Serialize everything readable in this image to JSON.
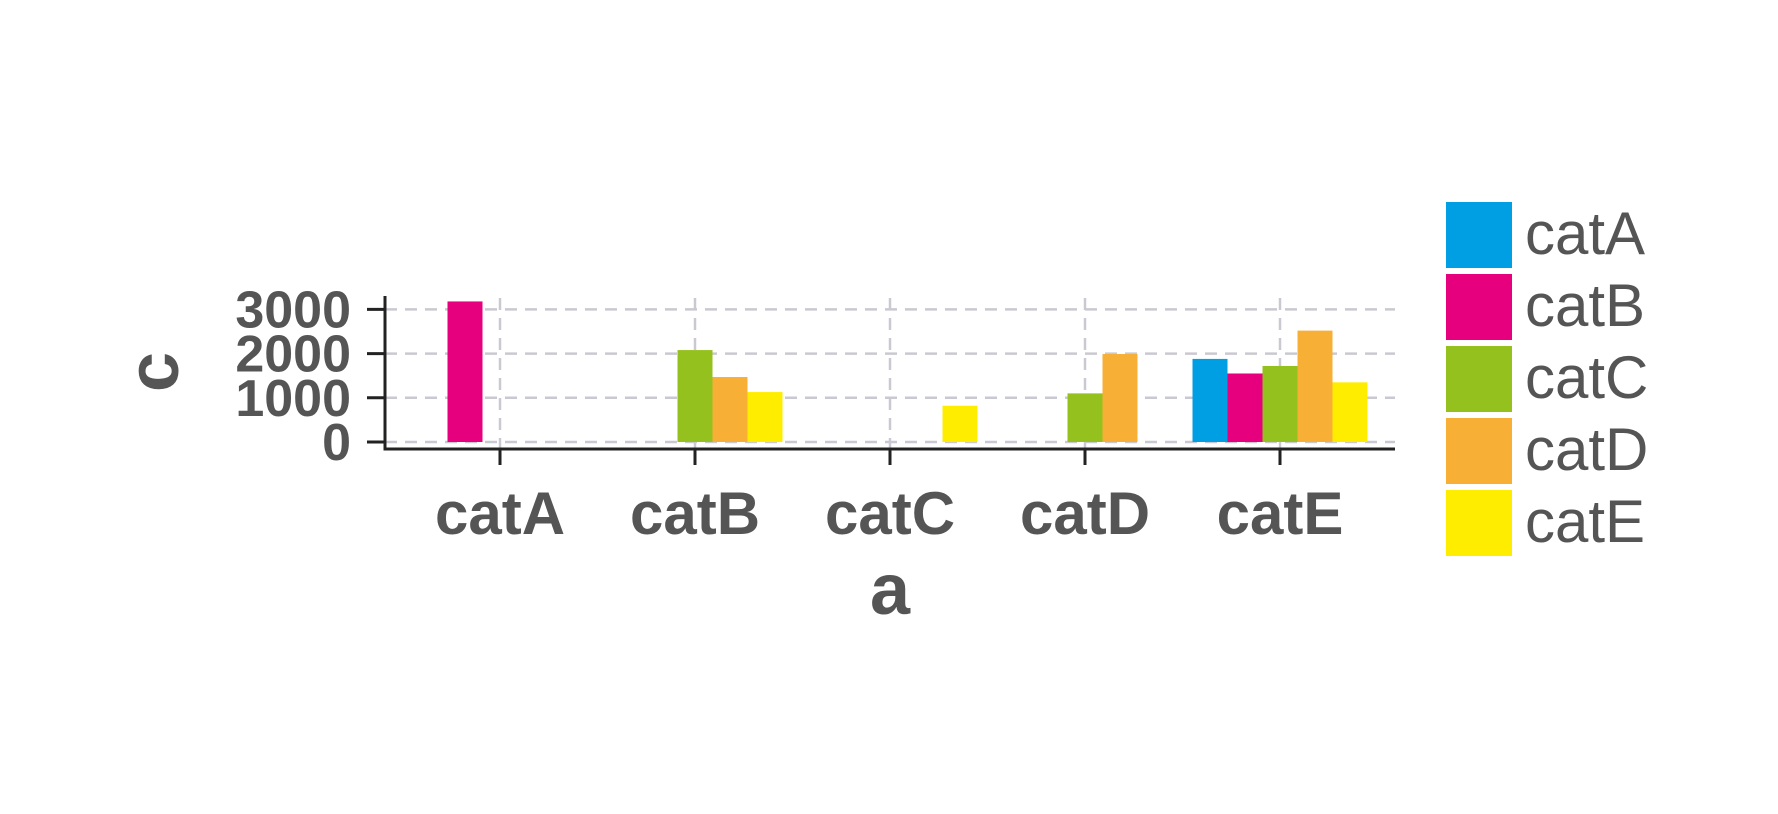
{
  "chart_data": {
    "type": "bar",
    "title": "",
    "xlabel": "a",
    "ylabel": "c",
    "categories": [
      "catA",
      "catB",
      "catC",
      "catD",
      "catE"
    ],
    "series": [
      {
        "name": "catA",
        "color": "#009FE3",
        "values": [
          null,
          null,
          null,
          null,
          1880
        ]
      },
      {
        "name": "catB",
        "color": "#E6007E",
        "values": [
          3180,
          null,
          null,
          null,
          1550
        ]
      },
      {
        "name": "catC",
        "color": "#95C11F",
        "values": [
          null,
          2080,
          null,
          1100,
          1720
        ]
      },
      {
        "name": "catD",
        "color": "#F7AF36",
        "values": [
          null,
          1470,
          null,
          1990,
          2520
        ]
      },
      {
        "name": "catE",
        "color": "#FFED00",
        "values": [
          null,
          1130,
          820,
          null,
          1350
        ]
      }
    ],
    "yticks": [
      0,
      1000,
      2000,
      3000
    ],
    "ylim": [
      0,
      3200
    ],
    "grid": true,
    "legend": {
      "position": "right",
      "items": [
        "catA",
        "catB",
        "catC",
        "catD",
        "catE"
      ]
    }
  }
}
